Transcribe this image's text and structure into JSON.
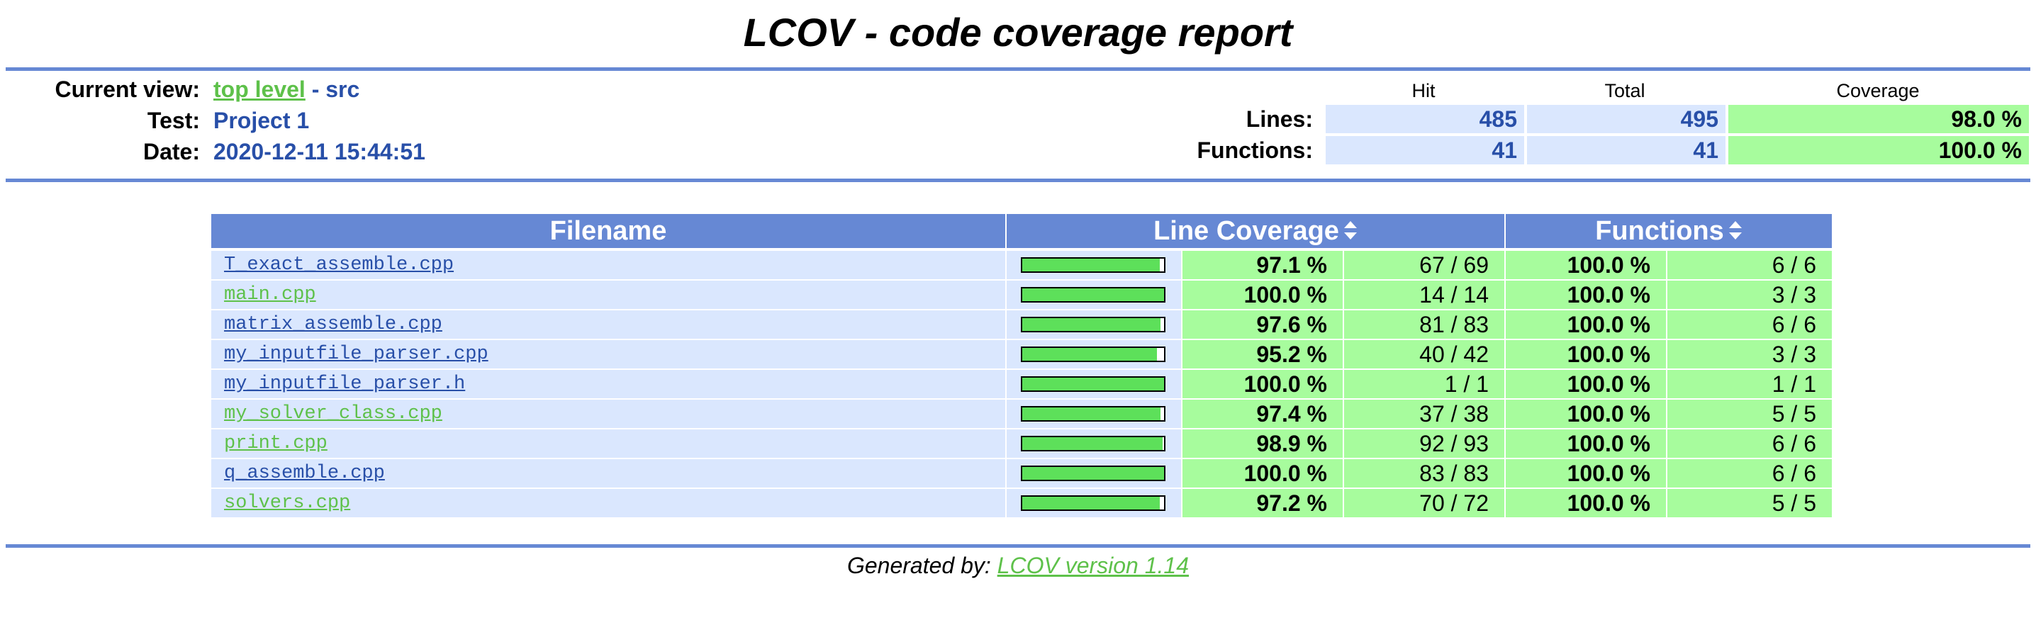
{
  "page": {
    "title": "LCOV - code coverage report"
  },
  "colors": {
    "rule": "#6688d4",
    "header_value": "#284fa8",
    "link_visited": "#5ec14a",
    "link_dark": "#284fa8",
    "cell_blue": "#dae7fe",
    "cell_green": "#a7fc9d",
    "bar_green": "#5de05a"
  },
  "header": {
    "current_view_label": "Current view:",
    "current_view_link": "top level",
    "current_view_sep": " - ",
    "current_view_dir": "src",
    "test_label": "Test:",
    "test_value": "Project 1",
    "date_label": "Date:",
    "date_value": "2020-12-11 15:44:51"
  },
  "summary": {
    "col_hit": "Hit",
    "col_total": "Total",
    "col_coverage": "Coverage",
    "lines_label": "Lines:",
    "lines_hit": "485",
    "lines_total": "495",
    "lines_coverage": "98.0 %",
    "functions_label": "Functions:",
    "functions_hit": "41",
    "functions_total": "41",
    "functions_coverage": "100.0 %"
  },
  "table": {
    "col_filename": "Filename",
    "col_line_coverage": "Line Coverage",
    "col_functions": "Functions",
    "sort_icon": "sort-updown-icon",
    "rows": [
      {
        "file": "T_exact_assemble.cpp",
        "link_color": "#284fa8",
        "line_pct": "97.1 %",
        "line_fraction": 0.971,
        "line_count": "67 / 69",
        "func_pct": "100.0 %",
        "func_count": "6 / 6"
      },
      {
        "file": "main.cpp",
        "link_color": "#5ec14a",
        "line_pct": "100.0 %",
        "line_fraction": 1.0,
        "line_count": "14 / 14",
        "func_pct": "100.0 %",
        "func_count": "3 / 3"
      },
      {
        "file": "matrix_assemble.cpp",
        "link_color": "#284fa8",
        "line_pct": "97.6 %",
        "line_fraction": 0.976,
        "line_count": "81 / 83",
        "func_pct": "100.0 %",
        "func_count": "6 / 6"
      },
      {
        "file": "my_inputfile_parser.cpp",
        "link_color": "#284fa8",
        "line_pct": "95.2 %",
        "line_fraction": 0.952,
        "line_count": "40 / 42",
        "func_pct": "100.0 %",
        "func_count": "3 / 3"
      },
      {
        "file": "my_inputfile_parser.h",
        "link_color": "#284fa8",
        "line_pct": "100.0 %",
        "line_fraction": 1.0,
        "line_count": "1 / 1",
        "func_pct": "100.0 %",
        "func_count": "1 / 1"
      },
      {
        "file": "my_solver_class.cpp",
        "link_color": "#5ec14a",
        "line_pct": "97.4 %",
        "line_fraction": 0.974,
        "line_count": "37 / 38",
        "func_pct": "100.0 %",
        "func_count": "5 / 5"
      },
      {
        "file": "print.cpp",
        "link_color": "#5ec14a",
        "line_pct": "98.9 %",
        "line_fraction": 0.989,
        "line_count": "92 / 93",
        "func_pct": "100.0 %",
        "func_count": "6 / 6"
      },
      {
        "file": "q_assemble.cpp",
        "link_color": "#284fa8",
        "line_pct": "100.0 %",
        "line_fraction": 1.0,
        "line_count": "83 / 83",
        "func_pct": "100.0 %",
        "func_count": "6 / 6"
      },
      {
        "file": "solvers.cpp",
        "link_color": "#5ec14a",
        "line_pct": "97.2 %",
        "line_fraction": 0.972,
        "line_count": "70 / 72",
        "func_pct": "100.0 %",
        "func_count": "5 / 5"
      }
    ]
  },
  "footer": {
    "generated_by": "Generated by: ",
    "lcov_link": "LCOV version 1.14"
  }
}
